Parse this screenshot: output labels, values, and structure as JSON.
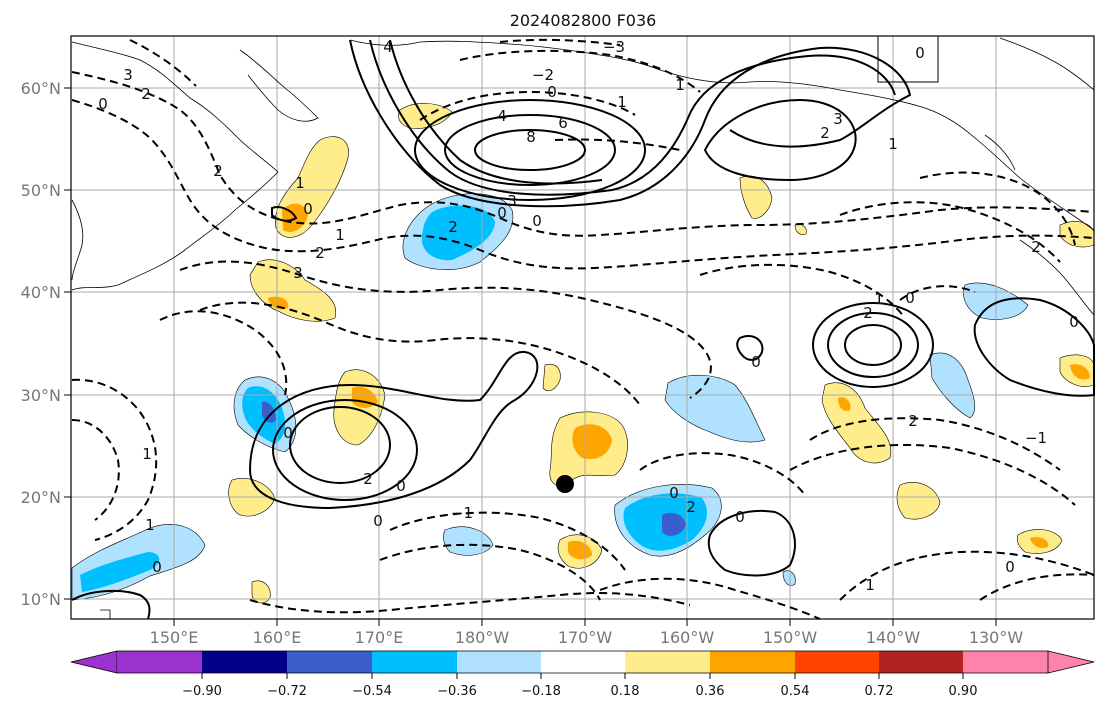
{
  "title": "2024082800 F036",
  "lat_labels": [
    "60°N",
    "50°N",
    "40°N",
    "30°N",
    "20°N",
    "10°N"
  ],
  "lon_labels": [
    "150°E",
    "160°E",
    "170°E",
    "180°W",
    "170°W",
    "160°W",
    "150°W",
    "140°W",
    "130°W"
  ],
  "colorbar": {
    "tick_labels": [
      "−0.90",
      "−0.72",
      "−0.54",
      "−0.36",
      "−0.18",
      "0.18",
      "0.36",
      "0.54",
      "0.72",
      "0.90"
    ],
    "colors": [
      "#9a32cd",
      "#00008b",
      "#3a5fcd",
      "#00bfff",
      "#b0e2ff",
      "#ffffff",
      "#ffec8b",
      "#ffa500",
      "#ff4500",
      "#b22222",
      "#ff82ab"
    ]
  },
  "contour_labels": [
    "4",
    "3",
    "2",
    "0",
    "−3",
    "−2",
    "0",
    "1",
    "4",
    "6",
    "8",
    "3",
    "0",
    "1",
    "2",
    "3",
    "2",
    "1",
    "0",
    "2",
    "0",
    "2",
    "1",
    "3",
    "0",
    "1",
    "2",
    "0",
    "1",
    "2",
    "0",
    "0",
    "−1",
    "2",
    "1",
    "0",
    "0",
    "0",
    "−1",
    "1",
    "0",
    "2",
    "0",
    "2",
    "1",
    "0",
    "0"
  ],
  "marker": "storm-center-dot"
}
